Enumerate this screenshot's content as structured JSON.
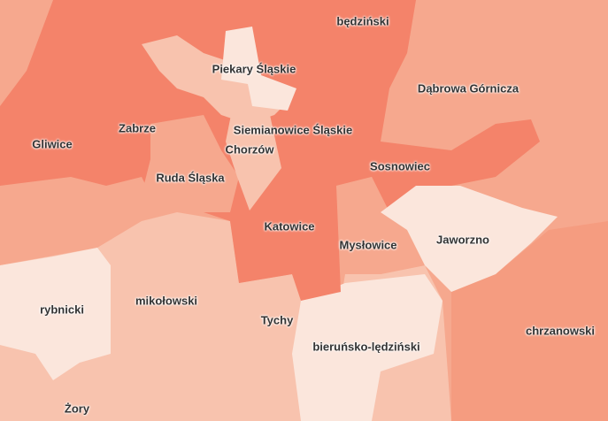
{
  "map": {
    "colors": {
      "darkest": "#f4836a",
      "medium": "#f6a88e",
      "medium_dark": "#f59c80",
      "light": "#f8c3ae",
      "lightest": "#fbe6dc"
    },
    "labels": [
      {
        "name": "będziński"
      },
      {
        "name": "Piekary Śląskie"
      },
      {
        "name": "Dąbrowa Górnicza"
      },
      {
        "name": "Zabrze"
      },
      {
        "name": "Siemianowice Śląskie"
      },
      {
        "name": "Gliwice"
      },
      {
        "name": "Chorzów"
      },
      {
        "name": "Sosnowiec"
      },
      {
        "name": "Ruda Śląska"
      },
      {
        "name": "Katowice"
      },
      {
        "name": "Jaworzno"
      },
      {
        "name": "Mysłowice"
      },
      {
        "name": "rybnicki"
      },
      {
        "name": "mikołowski"
      },
      {
        "name": "Tychy"
      },
      {
        "name": "bieruńsko-lędziński"
      },
      {
        "name": "chrzanowski"
      },
      {
        "name": "Żory"
      }
    ]
  }
}
